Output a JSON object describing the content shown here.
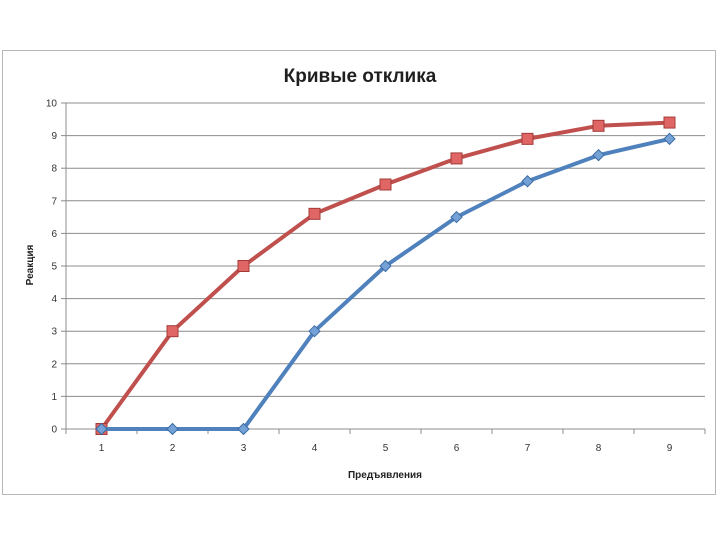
{
  "chart_data": {
    "type": "line",
    "title": "Кривые отклика",
    "xlabel": "Предъявления",
    "ylabel": "Реакция",
    "categories": [
      "1",
      "2",
      "3",
      "4",
      "5",
      "6",
      "7",
      "8",
      "9"
    ],
    "ylim": [
      0,
      10
    ],
    "yticks": [
      0,
      1,
      2,
      3,
      4,
      5,
      6,
      7,
      8,
      9,
      10
    ],
    "grid": true,
    "legend": "none",
    "series": [
      {
        "values": [
          0,
          3,
          5,
          6.6,
          7.5,
          8.3,
          8.9,
          9.3,
          9.4
        ],
        "color": "#c0504d",
        "marker": "square"
      },
      {
        "values": [
          0,
          0,
          0,
          3,
          5,
          6.5,
          7.6,
          8.4,
          8.9
        ],
        "color": "#4f81bd",
        "marker": "diamond"
      }
    ]
  }
}
